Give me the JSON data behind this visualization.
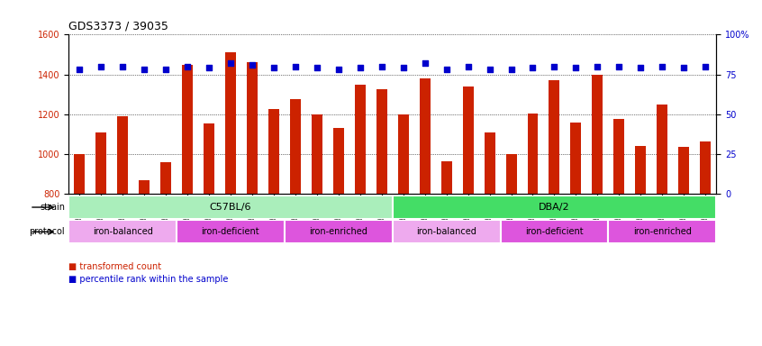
{
  "title": "GDS3373 / 39035",
  "samples": [
    "GSM262762",
    "GSM262765",
    "GSM262768",
    "GSM262769",
    "GSM262770",
    "GSM262796",
    "GSM262797",
    "GSM262798",
    "GSM262799",
    "GSM262800",
    "GSM262771",
    "GSM262772",
    "GSM262773",
    "GSM262794",
    "GSM262795",
    "GSM262817",
    "GSM262819",
    "GSM262820",
    "GSM262839",
    "GSM262840",
    "GSM262950",
    "GSM262951",
    "GSM262952",
    "GSM262953",
    "GSM262954",
    "GSM262841",
    "GSM262842",
    "GSM262843",
    "GSM262844",
    "GSM262845"
  ],
  "bar_values": [
    1000,
    1110,
    1190,
    870,
    960,
    1450,
    1155,
    1510,
    1460,
    1225,
    1275,
    1200,
    1130,
    1350,
    1325,
    1200,
    1380,
    965,
    1340,
    1110,
    1000,
    1205,
    1370,
    1160,
    1400,
    1175,
    1040,
    1250,
    1035,
    1065
  ],
  "dot_values": [
    78,
    80,
    80,
    78,
    78,
    80,
    79,
    82,
    81,
    79,
    80,
    79,
    78,
    79,
    80,
    79,
    82,
    78,
    80,
    78,
    78,
    79,
    80,
    79,
    80,
    80,
    79,
    80,
    79,
    80
  ],
  "ylim_left": [
    800,
    1600
  ],
  "ylim_right": [
    0,
    100
  ],
  "yticks_left": [
    800,
    1000,
    1200,
    1400,
    1600
  ],
  "yticks_right": [
    0,
    25,
    50,
    75,
    100
  ],
  "bar_color": "#cc2200",
  "dot_color": "#0000cc",
  "strain_groups": [
    {
      "label": "C57BL/6",
      "start": 0,
      "end": 15,
      "color": "#aaeebb"
    },
    {
      "label": "DBA/2",
      "start": 15,
      "end": 30,
      "color": "#44dd66"
    }
  ],
  "protocol_groups": [
    {
      "label": "iron-balanced",
      "start": 0,
      "end": 5,
      "color": "#eeaaee"
    },
    {
      "label": "iron-deficient",
      "start": 5,
      "end": 10,
      "color": "#dd55dd"
    },
    {
      "label": "iron-enriched",
      "start": 10,
      "end": 15,
      "color": "#dd55dd"
    },
    {
      "label": "iron-balanced",
      "start": 15,
      "end": 20,
      "color": "#eeaaee"
    },
    {
      "label": "iron-deficient",
      "start": 20,
      "end": 25,
      "color": "#dd55dd"
    },
    {
      "label": "iron-enriched",
      "start": 25,
      "end": 30,
      "color": "#dd55dd"
    }
  ]
}
